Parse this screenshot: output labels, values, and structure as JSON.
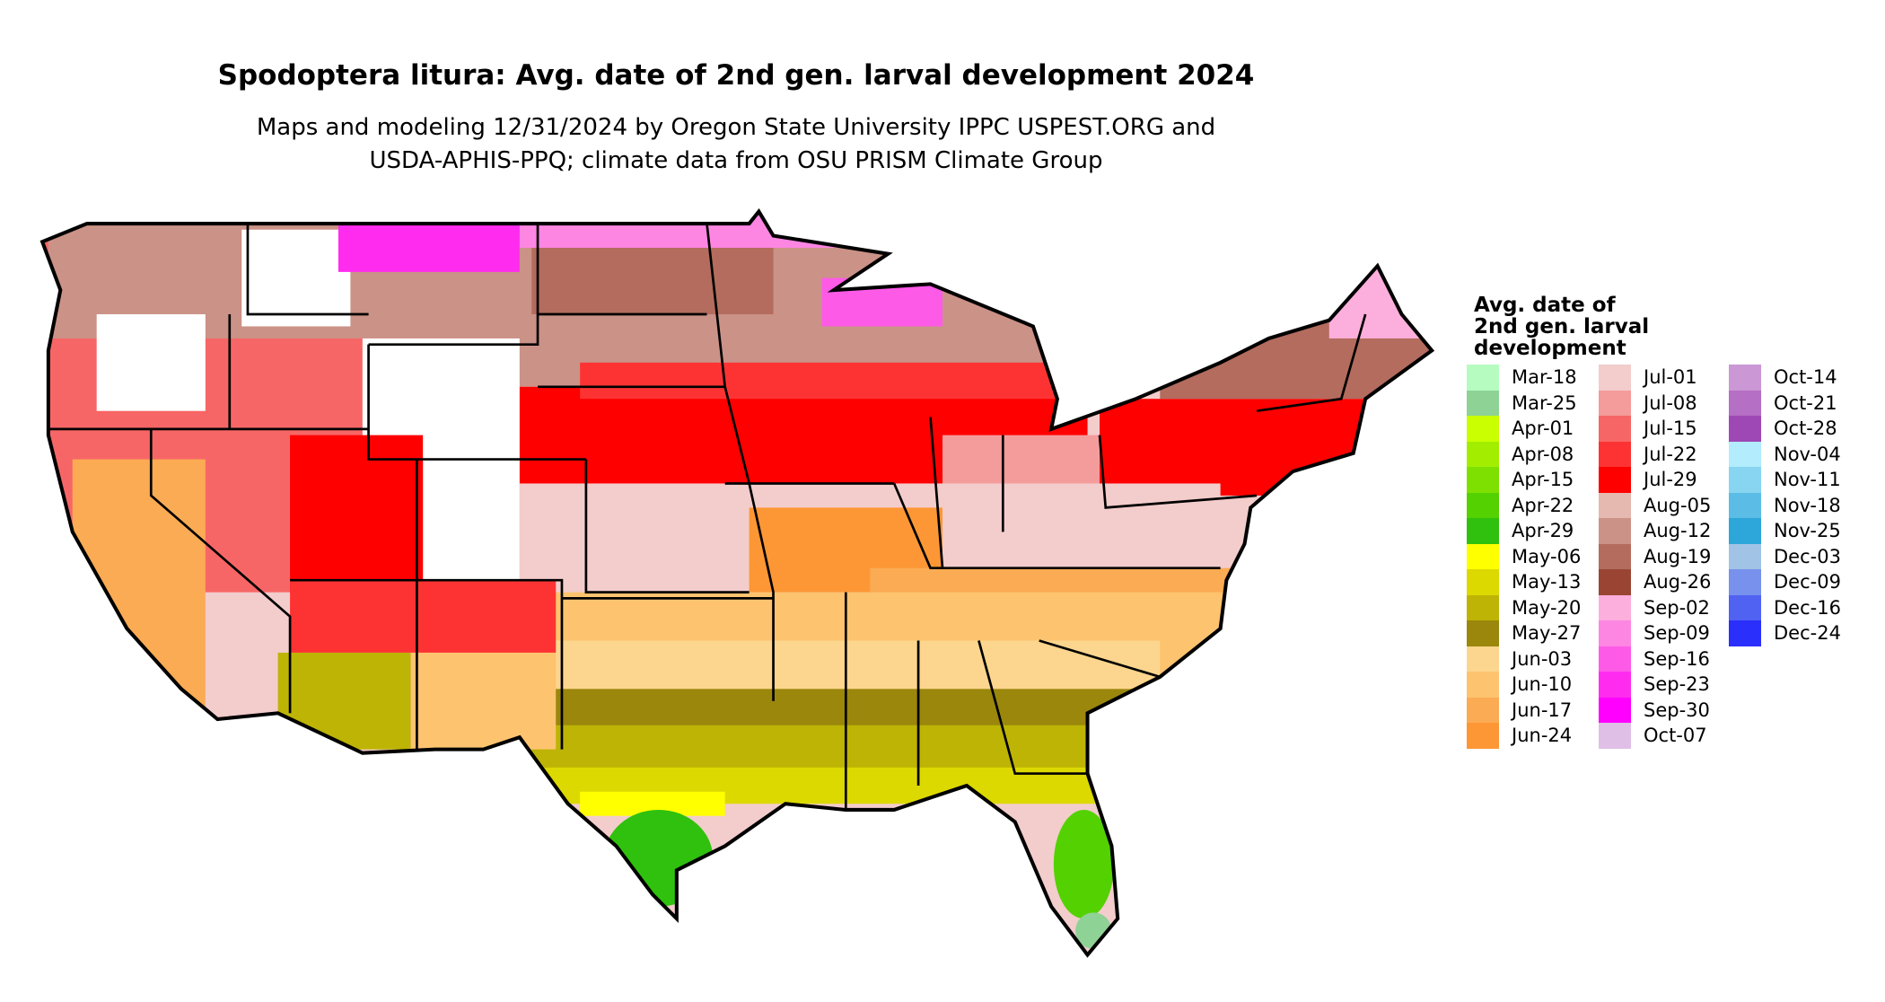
{
  "title": "Spodoptera litura: Avg. date of 2nd gen. larval development 2024",
  "subtitle_lines": [
    "Maps and modeling 12/31/2024 by Oregon State University IPPC USPEST.ORG and",
    "USDA-APHIS-PPQ; climate data from OSU PRISM Climate Group"
  ],
  "legend": {
    "title_lines": [
      "Avg. date of",
      "2nd gen. larval",
      "development"
    ],
    "columns": [
      [
        {
          "label": "Mar-18",
          "color": "#b6fcc0"
        },
        {
          "label": "Mar-25",
          "color": "#8fd296"
        },
        {
          "label": "Apr-01",
          "color": "#c9ff00"
        },
        {
          "label": "Apr-08",
          "color": "#a3ee00"
        },
        {
          "label": "Apr-15",
          "color": "#7ee000"
        },
        {
          "label": "Apr-22",
          "color": "#54d100"
        },
        {
          "label": "Apr-29",
          "color": "#2fc10d"
        },
        {
          "label": "May-06",
          "color": "#ffff00"
        },
        {
          "label": "May-13",
          "color": "#dcd900"
        },
        {
          "label": "May-20",
          "color": "#bdb405"
        },
        {
          "label": "May-27",
          "color": "#9a870c"
        },
        {
          "label": "Jun-03",
          "color": "#fcd68e"
        },
        {
          "label": "Jun-10",
          "color": "#fdc36f"
        },
        {
          "label": "Jun-17",
          "color": "#fbab53"
        },
        {
          "label": "Jun-24",
          "color": "#fd9735"
        }
      ],
      [
        {
          "label": "Jul-01",
          "color": "#f3cccc"
        },
        {
          "label": "Jul-08",
          "color": "#f49b9b"
        },
        {
          "label": "Jul-15",
          "color": "#f76666"
        },
        {
          "label": "Jul-22",
          "color": "#fd3333"
        },
        {
          "label": "Jul-29",
          "color": "#ff0000"
        },
        {
          "label": "Aug-05",
          "color": "#e5b8b0"
        },
        {
          "label": "Aug-12",
          "color": "#cb9287"
        },
        {
          "label": "Aug-19",
          "color": "#b36c5e"
        },
        {
          "label": "Aug-26",
          "color": "#9a4533"
        },
        {
          "label": "Sep-02",
          "color": "#fcafdc"
        },
        {
          "label": "Sep-09",
          "color": "#fd86e3"
        },
        {
          "label": "Sep-16",
          "color": "#fe5ae8"
        },
        {
          "label": "Sep-23",
          "color": "#ff2cf0"
        },
        {
          "label": "Sep-30",
          "color": "#ff00ff"
        },
        {
          "label": "Oct-07",
          "color": "#e0bfe6"
        }
      ],
      [
        {
          "label": "Oct-14",
          "color": "#cb97d5"
        },
        {
          "label": "Oct-21",
          "color": "#b56fc4"
        },
        {
          "label": "Oct-28",
          "color": "#9e48b5"
        },
        {
          "label": "Nov-04",
          "color": "#b2ecfd"
        },
        {
          "label": "Nov-11",
          "color": "#88d5f2"
        },
        {
          "label": "Nov-18",
          "color": "#5bbde6"
        },
        {
          "label": "Nov-25",
          "color": "#2da6da"
        },
        {
          "label": "Dec-03",
          "color": "#a1c3e6"
        },
        {
          "label": "Dec-09",
          "color": "#7791ec"
        },
        {
          "label": "Dec-16",
          "color": "#5062f2"
        },
        {
          "label": "Dec-24",
          "color": "#2b2ffc"
        }
      ]
    ]
  }
}
